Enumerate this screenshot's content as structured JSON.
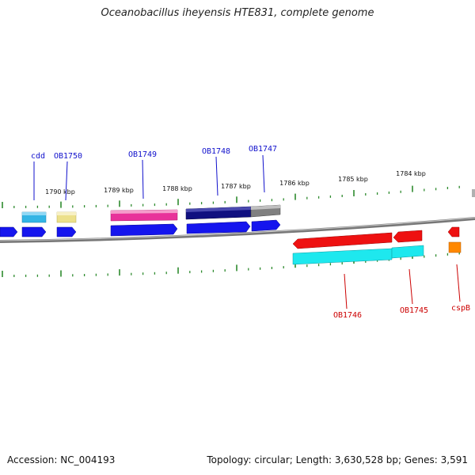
{
  "title": "Oceanobacillus iheyensis HTE831, complete genome",
  "footer": {
    "accession": "Accession: NC_004193",
    "topology": "Topology: circular; Length: 3,630,528 bp; Genes: 3,591"
  },
  "scale_labels": [
    "1790 kbp",
    "1789 kbp",
    "1788 kbp",
    "1787 kbp",
    "1786 kbp",
    "1785 kbp",
    "1784 kbp"
  ],
  "gene_labels": {
    "top": [
      "cdd",
      "OB1750",
      "OB1749",
      "OB1748",
      "OB1747"
    ],
    "bottom": [
      "OB1746",
      "OB1745",
      "cspB"
    ]
  },
  "colors": {
    "backbone": "#8a8a8a",
    "tick": "#2e8b2e",
    "forward_label": "#1010cc",
    "reverse_label": "#cc0000",
    "cds_forward": "#1515ee",
    "cds_reverse": "#ee1111",
    "sky_blue": "#33b5e5",
    "pale_yellow": "#ece08a",
    "magenta": "#e8329a",
    "navy": "#101080",
    "grey": "#808080",
    "cyan": "#1ee8ee",
    "orange": "#ff8800"
  }
}
